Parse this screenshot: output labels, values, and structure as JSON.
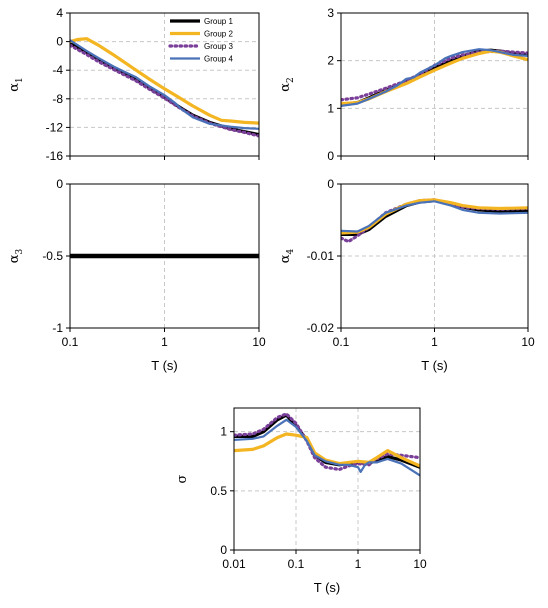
{
  "legend": [
    "Group 1",
    "Group 2",
    "Group 3",
    "Group 4"
  ],
  "colors": {
    "Group 1": "#000000",
    "Group 2": "#f4b522",
    "Group 3": "#7a3f99",
    "Group 4": "#4a72b8"
  },
  "chart_data": [
    {
      "id": "a1",
      "type": "line",
      "ylabel": "α",
      "ylabel_sub": "1",
      "xlabel": "",
      "xscale": "log",
      "xlim": [
        0.1,
        10
      ],
      "ylim": [
        -16,
        4
      ],
      "xticks": [
        0.1,
        1,
        10
      ],
      "xticklabels": [
        "",
        "",
        ""
      ],
      "yticks": [
        4,
        0,
        -4,
        -8,
        -12,
        -16
      ],
      "yticklabels": [
        "4",
        "0",
        "-4",
        "-8",
        "-12",
        "-16"
      ],
      "grid": "dashed",
      "legend_position": "top-right",
      "series": [
        {
          "name": "Group 1",
          "x": [
            0.1,
            0.15,
            0.2,
            0.3,
            0.5,
            0.7,
            1,
            1.5,
            2,
            3,
            5,
            7,
            10
          ],
          "y": [
            -0.3,
            -1.5,
            -2.5,
            -3.8,
            -5.3,
            -6.5,
            -7.8,
            -9.3,
            -10.3,
            -11.3,
            -12.2,
            -12.6,
            -13.0
          ]
        },
        {
          "name": "Group 2",
          "x": [
            0.1,
            0.12,
            0.15,
            0.2,
            0.3,
            0.5,
            0.7,
            1,
            1.5,
            2,
            3,
            4,
            5,
            7,
            10
          ],
          "y": [
            0.0,
            0.3,
            0.4,
            -0.5,
            -2.0,
            -4.0,
            -5.3,
            -6.6,
            -8.0,
            -9.0,
            -10.3,
            -11.0,
            -11.1,
            -11.3,
            -11.4
          ]
        },
        {
          "name": "Group 3",
          "x": [
            0.1,
            0.15,
            0.2,
            0.3,
            0.5,
            0.7,
            1,
            1.5,
            2,
            3,
            5,
            7,
            10
          ],
          "y": [
            -0.5,
            -1.8,
            -2.8,
            -4.0,
            -5.5,
            -6.7,
            -7.9,
            -9.4,
            -10.4,
            -11.4,
            -12.3,
            -12.7,
            -13.2
          ]
        },
        {
          "name": "Group 4",
          "x": [
            0.1,
            0.15,
            0.2,
            0.3,
            0.5,
            0.7,
            1,
            1.3,
            1.5,
            2,
            3,
            5,
            7,
            10
          ],
          "y": [
            0.2,
            -1.3,
            -2.3,
            -3.6,
            -5.0,
            -6.3,
            -7.5,
            -8.6,
            -9.4,
            -10.6,
            -11.5,
            -11.9,
            -12.1,
            -12.2
          ]
        }
      ]
    },
    {
      "id": "a2",
      "type": "line",
      "ylabel": "α",
      "ylabel_sub": "2",
      "xlabel": "",
      "xscale": "log",
      "xlim": [
        0.1,
        10
      ],
      "ylim": [
        0,
        3
      ],
      "xticks": [
        0.1,
        1,
        10
      ],
      "xticklabels": [
        "",
        "",
        ""
      ],
      "yticks": [
        0,
        1,
        2,
        3
      ],
      "yticklabels": [
        "0",
        "1",
        "2",
        "3"
      ],
      "grid": "dashed",
      "series": [
        {
          "name": "Group 1",
          "x": [
            0.1,
            0.15,
            0.2,
            0.3,
            0.5,
            0.7,
            1,
            1.5,
            2,
            3,
            4,
            5,
            7,
            10
          ],
          "y": [
            1.08,
            1.12,
            1.22,
            1.38,
            1.55,
            1.7,
            1.85,
            2.0,
            2.1,
            2.2,
            2.22,
            2.2,
            2.15,
            2.12
          ]
        },
        {
          "name": "Group 2",
          "x": [
            0.1,
            0.15,
            0.2,
            0.3,
            0.5,
            0.7,
            1,
            1.5,
            2,
            3,
            4,
            5,
            7,
            10
          ],
          "y": [
            1.1,
            1.12,
            1.2,
            1.35,
            1.52,
            1.66,
            1.8,
            1.95,
            2.05,
            2.15,
            2.2,
            2.18,
            2.1,
            2.02
          ]
        },
        {
          "name": "Group 3",
          "x": [
            0.1,
            0.15,
            0.2,
            0.3,
            0.5,
            0.7,
            1,
            1.5,
            2,
            3,
            5,
            7,
            10
          ],
          "y": [
            1.18,
            1.22,
            1.3,
            1.42,
            1.58,
            1.72,
            1.9,
            2.05,
            2.12,
            2.18,
            2.2,
            2.18,
            2.16
          ]
        },
        {
          "name": "Group 4",
          "x": [
            0.1,
            0.15,
            0.2,
            0.3,
            0.4,
            0.5,
            0.6,
            0.7,
            1,
            1.3,
            1.5,
            2,
            3,
            4,
            5,
            7,
            10
          ],
          "y": [
            1.05,
            1.1,
            1.2,
            1.35,
            1.48,
            1.62,
            1.65,
            1.75,
            1.9,
            2.05,
            2.1,
            2.18,
            2.24,
            2.22,
            2.18,
            2.12,
            2.1
          ]
        }
      ]
    },
    {
      "id": "a3",
      "type": "line",
      "ylabel": "α",
      "ylabel_sub": "3",
      "xlabel": "T (s)",
      "xscale": "log",
      "xlim": [
        0.1,
        10
      ],
      "ylim": [
        -1,
        0
      ],
      "xticks": [
        0.1,
        1,
        10
      ],
      "xticklabels": [
        "0.1",
        "1",
        "10"
      ],
      "yticks": [
        0,
        -0.5,
        -1
      ],
      "yticklabels": [
        "0",
        "-0.5",
        "-1"
      ],
      "grid": "dashed",
      "series": [
        {
          "name": "Group 1",
          "x": [
            0.1,
            10
          ],
          "y": [
            -0.5,
            -0.5
          ]
        }
      ]
    },
    {
      "id": "a4",
      "type": "line",
      "ylabel": "α",
      "ylabel_sub": "4",
      "xlabel": "T (s)",
      "xscale": "log",
      "xlim": [
        0.1,
        10
      ],
      "ylim": [
        -0.02,
        0
      ],
      "xticks": [
        0.1,
        1,
        10
      ],
      "xticklabels": [
        "0.1",
        "1",
        "10"
      ],
      "yticks": [
        0,
        -0.01,
        -0.02
      ],
      "yticklabels": [
        "0",
        "-0.01",
        "-0.02"
      ],
      "grid": "dashed",
      "series": [
        {
          "name": "Group 1",
          "x": [
            0.1,
            0.15,
            0.2,
            0.3,
            0.5,
            0.7,
            1,
            1.5,
            2,
            3,
            5,
            10
          ],
          "y": [
            -0.007,
            -0.007,
            -0.0063,
            -0.0045,
            -0.003,
            -0.0025,
            -0.0023,
            -0.0027,
            -0.0032,
            -0.0036,
            -0.0038,
            -0.0037
          ]
        },
        {
          "name": "Group 2",
          "x": [
            0.1,
            0.15,
            0.2,
            0.3,
            0.5,
            0.7,
            1,
            1.5,
            2,
            3,
            5,
            10
          ],
          "y": [
            -0.0068,
            -0.0067,
            -0.006,
            -0.0042,
            -0.0028,
            -0.0023,
            -0.0022,
            -0.0026,
            -0.003,
            -0.0033,
            -0.0034,
            -0.0033
          ]
        },
        {
          "name": "Group 3",
          "x": [
            0.1,
            0.12,
            0.15,
            0.2,
            0.3,
            0.5,
            0.7,
            1,
            1.5,
            2,
            3,
            5,
            10
          ],
          "y": [
            -0.0075,
            -0.008,
            -0.0072,
            -0.006,
            -0.004,
            -0.0028,
            -0.0023,
            -0.0022,
            -0.0028,
            -0.0032,
            -0.0034,
            -0.0035,
            -0.0034
          ]
        },
        {
          "name": "Group 4",
          "x": [
            0.1,
            0.15,
            0.2,
            0.3,
            0.5,
            0.7,
            1,
            1.5,
            2,
            3,
            5,
            10
          ],
          "y": [
            -0.0065,
            -0.0066,
            -0.0058,
            -0.004,
            -0.003,
            -0.0026,
            -0.0024,
            -0.003,
            -0.0036,
            -0.004,
            -0.0041,
            -0.004
          ]
        }
      ]
    },
    {
      "id": "sigma",
      "type": "line",
      "ylabel": "σ",
      "ylabel_sub": "",
      "xlabel": "T (s)",
      "xscale": "log",
      "xlim": [
        0.01,
        10
      ],
      "ylim": [
        0,
        1.2
      ],
      "xticks": [
        0.01,
        0.1,
        1,
        10
      ],
      "xticklabels": [
        "0.01",
        "0.1",
        "1",
        "10"
      ],
      "yticks": [
        0,
        0.5,
        1
      ],
      "yticklabels": [
        "0",
        "0.5",
        "1"
      ],
      "grid": "dashed",
      "series": [
        {
          "name": "Group 1",
          "x": [
            0.01,
            0.02,
            0.03,
            0.05,
            0.07,
            0.1,
            0.15,
            0.2,
            0.3,
            0.5,
            0.7,
            1,
            1.5,
            2,
            3,
            5,
            10
          ],
          "y": [
            0.96,
            0.96,
            1.0,
            1.1,
            1.14,
            1.05,
            0.93,
            0.8,
            0.74,
            0.72,
            0.73,
            0.74,
            0.73,
            0.76,
            0.79,
            0.76,
            0.7
          ]
        },
        {
          "name": "Group 2",
          "x": [
            0.01,
            0.02,
            0.03,
            0.05,
            0.07,
            0.1,
            0.15,
            0.2,
            0.3,
            0.5,
            0.7,
            1,
            1.5,
            2,
            3,
            5,
            10
          ],
          "y": [
            0.84,
            0.85,
            0.88,
            0.95,
            0.98,
            0.97,
            0.95,
            0.82,
            0.76,
            0.73,
            0.74,
            0.75,
            0.74,
            0.78,
            0.84,
            0.78,
            0.71
          ]
        },
        {
          "name": "Group 3",
          "x": [
            0.01,
            0.02,
            0.03,
            0.05,
            0.07,
            0.1,
            0.15,
            0.2,
            0.3,
            0.5,
            0.7,
            1,
            1.5,
            2,
            3,
            5,
            10
          ],
          "y": [
            0.97,
            0.98,
            1.02,
            1.12,
            1.15,
            1.07,
            0.92,
            0.78,
            0.7,
            0.68,
            0.71,
            0.73,
            0.72,
            0.77,
            0.81,
            0.8,
            0.78
          ]
        },
        {
          "name": "Group 4",
          "x": [
            0.01,
            0.02,
            0.03,
            0.05,
            0.07,
            0.1,
            0.15,
            0.2,
            0.3,
            0.5,
            0.7,
            1,
            1.1,
            1.3,
            1.5,
            2,
            3,
            5,
            10
          ],
          "y": [
            0.93,
            0.94,
            0.96,
            1.05,
            1.1,
            1.04,
            0.92,
            0.8,
            0.75,
            0.72,
            0.72,
            0.7,
            0.66,
            0.72,
            0.74,
            0.74,
            0.77,
            0.73,
            0.63
          ]
        }
      ]
    }
  ]
}
